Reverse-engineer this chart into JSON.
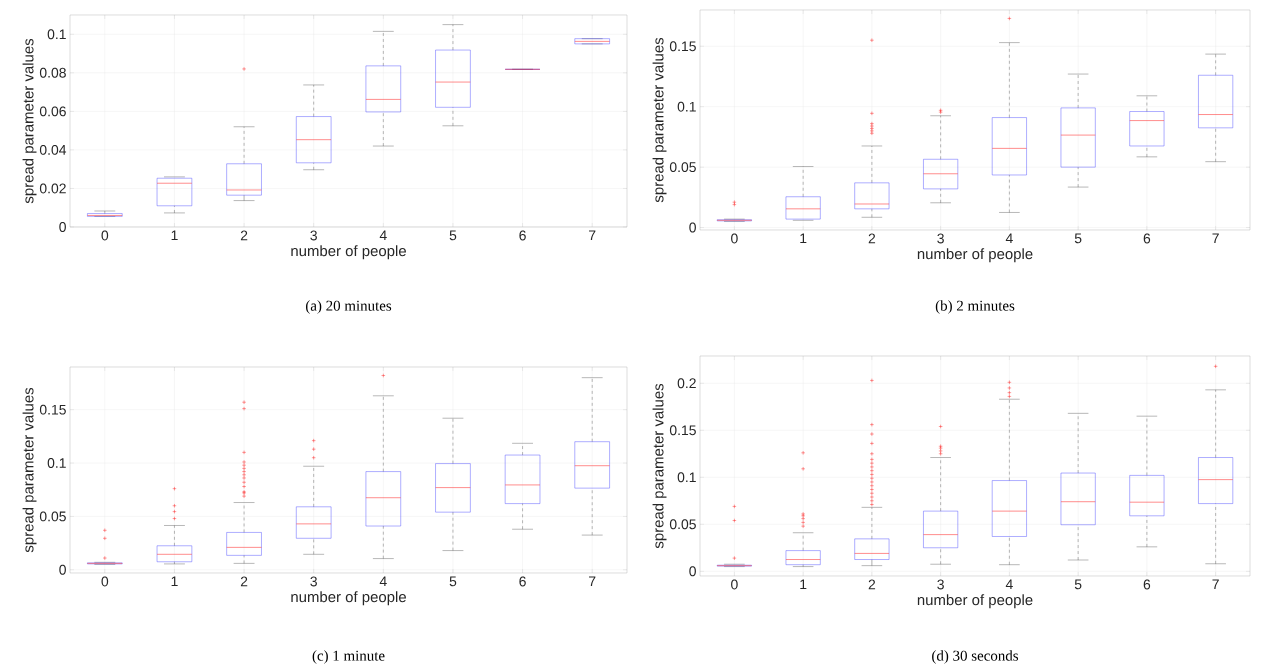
{
  "chart_data": [
    {
      "type": "box",
      "title": "(a) 20 minutes",
      "xlabel": "number of people",
      "ylabel": "spread parameter values",
      "categories": [
        "0",
        "1",
        "2",
        "3",
        "4",
        "5",
        "6",
        "7"
      ],
      "ylim": [
        0,
        0.11
      ],
      "yticks": [
        0,
        {
          "value": 0.02,
          "label": "0.02"
        },
        {
          "value": 0.04,
          "label": "0.04"
        },
        {
          "value": 0.06,
          "label": "0.06"
        },
        {
          "value": 0.08,
          "label": "0.08"
        },
        {
          "value": 0.1,
          "label": "0.1"
        }
      ],
      "grid": true,
      "marker": "cross",
      "boxes": [
        {
          "low": 0.0055,
          "q1": 0.0055,
          "median": 0.006,
          "q3": 0.007,
          "high": 0.0083
        },
        {
          "low": 0.0073,
          "q1": 0.011,
          "median": 0.0227,
          "q3": 0.0253,
          "high": 0.026
        },
        {
          "low": 0.0137,
          "q1": 0.0165,
          "median": 0.0192,
          "q3": 0.0328,
          "high": 0.052,
          "outliers": [
            0.082
          ]
        },
        {
          "low": 0.0297,
          "q1": 0.0333,
          "median": 0.0453,
          "q3": 0.0573,
          "high": 0.0737
        },
        {
          "low": 0.042,
          "q1": 0.0597,
          "median": 0.0662,
          "q3": 0.0836,
          "high": 0.1015
        },
        {
          "low": 0.0525,
          "q1": 0.0621,
          "median": 0.0752,
          "q3": 0.0918,
          "high": 0.105
        },
        {
          "low": 0.0818,
          "q1": 0.0818,
          "median": 0.0818,
          "q3": 0.0818,
          "high": 0.0818
        },
        {
          "low": 0.095,
          "q1": 0.095,
          "median": 0.0963,
          "q3": 0.0977,
          "high": 0.0977
        }
      ]
    },
    {
      "type": "box",
      "title": "(b) 2 minutes",
      "xlabel": "number of people",
      "ylabel": "spread parameter values",
      "categories": [
        "0",
        "1",
        "2",
        "3",
        "4",
        "5",
        "6",
        "7"
      ],
      "ylim": [
        -0.002,
        0.18
      ],
      "yticks": [
        0,
        {
          "value": 0.05,
          "label": "0.05"
        },
        {
          "value": 0.1,
          "label": "0.1"
        },
        {
          "value": 0.15,
          "label": "0.15"
        }
      ],
      "grid": true,
      "marker": "cross",
      "boxes": [
        {
          "low": 0.005,
          "q1": 0.0055,
          "median": 0.006,
          "q3": 0.0065,
          "high": 0.007,
          "outliers": [
            0.021,
            0.019
          ]
        },
        {
          "low": 0.006,
          "q1": 0.007,
          "median": 0.0155,
          "q3": 0.0255,
          "high": 0.0505
        },
        {
          "low": 0.0085,
          "q1": 0.0155,
          "median": 0.0195,
          "q3": 0.037,
          "high": 0.0675,
          "outliers": [
            0.155,
            0.0945,
            0.086,
            0.084,
            0.082,
            0.08,
            0.078
          ]
        },
        {
          "low": 0.0205,
          "q1": 0.032,
          "median": 0.0445,
          "q3": 0.0565,
          "high": 0.0925,
          "outliers": [
            0.097,
            0.0955
          ]
        },
        {
          "low": 0.0125,
          "q1": 0.0435,
          "median": 0.0655,
          "q3": 0.091,
          "high": 0.153,
          "outliers": [
            0.173
          ]
        },
        {
          "low": 0.0335,
          "q1": 0.05,
          "median": 0.0765,
          "q3": 0.099,
          "high": 0.127
        },
        {
          "low": 0.0585,
          "q1": 0.0675,
          "median": 0.0885,
          "q3": 0.096,
          "high": 0.109
        },
        {
          "low": 0.0545,
          "q1": 0.0825,
          "median": 0.0935,
          "q3": 0.126,
          "high": 0.1435
        }
      ]
    },
    {
      "type": "box",
      "title": "(c) 1 minute",
      "xlabel": "number of people",
      "ylabel": "spread parameter values",
      "categories": [
        "0",
        "1",
        "2",
        "3",
        "4",
        "5",
        "6",
        "7"
      ],
      "ylim": [
        -0.003,
        0.19
      ],
      "yticks": [
        0,
        {
          "value": 0.05,
          "label": "0.05"
        },
        {
          "value": 0.1,
          "label": "0.1"
        },
        {
          "value": 0.15,
          "label": "0.15"
        }
      ],
      "grid": true,
      "marker": "cross",
      "boxes": [
        {
          "low": 0.005,
          "q1": 0.0055,
          "median": 0.006,
          "q3": 0.0065,
          "high": 0.007,
          "outliers": [
            0.037,
            0.0295,
            0.011
          ]
        },
        {
          "low": 0.0055,
          "q1": 0.0075,
          "median": 0.0145,
          "q3": 0.0225,
          "high": 0.0415,
          "outliers": [
            0.076,
            0.06,
            0.0545,
            0.048
          ]
        },
        {
          "low": 0.006,
          "q1": 0.0135,
          "median": 0.021,
          "q3": 0.035,
          "high": 0.063,
          "outliers": [
            0.157,
            0.151,
            0.11,
            0.101,
            0.098,
            0.095,
            0.092,
            0.089,
            0.086,
            0.082,
            0.078,
            0.073,
            0.072,
            0.069
          ]
        },
        {
          "low": 0.0145,
          "q1": 0.0295,
          "median": 0.043,
          "q3": 0.059,
          "high": 0.097,
          "outliers": [
            0.121,
            0.113,
            0.105
          ]
        },
        {
          "low": 0.0105,
          "q1": 0.041,
          "median": 0.0675,
          "q3": 0.092,
          "high": 0.163,
          "outliers": [
            0.182
          ]
        },
        {
          "low": 0.018,
          "q1": 0.054,
          "median": 0.077,
          "q3": 0.0995,
          "high": 0.142
        },
        {
          "low": 0.038,
          "q1": 0.062,
          "median": 0.0795,
          "q3": 0.1075,
          "high": 0.1185
        },
        {
          "low": 0.0325,
          "q1": 0.0765,
          "median": 0.0975,
          "q3": 0.12,
          "high": 0.18
        }
      ]
    },
    {
      "type": "box",
      "title": "(d) 30 seconds",
      "xlabel": "number of people",
      "ylabel": "spread parameter values",
      "categories": [
        "0",
        "1",
        "2",
        "3",
        "4",
        "5",
        "6",
        "7"
      ],
      "ylim": [
        -0.005,
        0.229
      ],
      "yticks": [
        0,
        {
          "value": 0.05,
          "label": "0.05"
        },
        {
          "value": 0.1,
          "label": "0.1"
        },
        {
          "value": 0.15,
          "label": "0.15"
        },
        {
          "value": 0.2,
          "label": "0.2"
        }
      ],
      "grid": true,
      "marker": "cross",
      "boxes": [
        {
          "low": 0.005,
          "q1": 0.0055,
          "median": 0.006,
          "q3": 0.0065,
          "high": 0.0075,
          "outliers": [
            0.069,
            0.054,
            0.014
          ]
        },
        {
          "low": 0.005,
          "q1": 0.007,
          "median": 0.0125,
          "q3": 0.022,
          "high": 0.041,
          "outliers": [
            0.126,
            0.109,
            0.061,
            0.059,
            0.056,
            0.052,
            0.048
          ]
        },
        {
          "low": 0.006,
          "q1": 0.0125,
          "median": 0.019,
          "q3": 0.0345,
          "high": 0.068,
          "outliers": [
            0.203,
            0.156,
            0.146,
            0.136,
            0.125,
            0.119,
            0.115,
            0.111,
            0.107,
            0.103,
            0.099,
            0.095,
            0.091,
            0.087,
            0.083,
            0.079,
            0.075,
            0.071
          ]
        },
        {
          "low": 0.0075,
          "q1": 0.025,
          "median": 0.039,
          "q3": 0.064,
          "high": 0.121,
          "outliers": [
            0.154,
            0.133,
            0.131,
            0.128,
            0.125
          ]
        },
        {
          "low": 0.007,
          "q1": 0.037,
          "median": 0.064,
          "q3": 0.0965,
          "high": 0.183,
          "outliers": [
            0.201,
            0.195,
            0.19,
            0.186
          ]
        },
        {
          "low": 0.012,
          "q1": 0.0495,
          "median": 0.074,
          "q3": 0.1045,
          "high": 0.168
        },
        {
          "low": 0.026,
          "q1": 0.059,
          "median": 0.0735,
          "q3": 0.102,
          "high": 0.165
        },
        {
          "low": 0.008,
          "q1": 0.072,
          "median": 0.0975,
          "q3": 0.121,
          "high": 0.193,
          "outliers": [
            0.218
          ]
        }
      ]
    }
  ]
}
